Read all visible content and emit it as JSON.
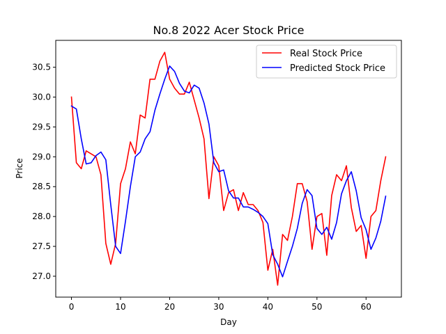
{
  "chart_data": {
    "type": "line",
    "title": "No.8 2022 Acer Stock Price",
    "xlabel": "Day",
    "ylabel": "Price",
    "xlim": [
      -3.2,
      67.2
    ],
    "ylim": [
      26.65,
      30.95
    ],
    "xticks": [
      0,
      10,
      20,
      30,
      40,
      50,
      60
    ],
    "yticks": [
      27.0,
      27.5,
      28.0,
      28.5,
      29.0,
      29.5,
      30.0,
      30.5
    ],
    "xtick_labels": [
      "0",
      "10",
      "20",
      "30",
      "40",
      "50",
      "60"
    ],
    "ytick_labels": [
      "27.0",
      "27.5",
      "28.0",
      "28.5",
      "29.0",
      "29.5",
      "30.0",
      "30.5"
    ],
    "grid": false,
    "legend_position": "top-right",
    "series": [
      {
        "name": "Real Stock Price",
        "color": "#ff0000",
        "x": [
          0,
          1,
          2,
          3,
          4,
          5,
          6,
          7,
          8,
          9,
          10,
          11,
          12,
          13,
          14,
          15,
          16,
          17,
          18,
          19,
          20,
          21,
          22,
          23,
          24,
          25,
          26,
          27,
          28,
          29,
          30,
          31,
          32,
          33,
          34,
          35,
          36,
          37,
          38,
          39,
          40,
          41,
          42,
          43,
          44,
          45,
          46,
          47,
          48,
          49,
          50,
          51,
          52,
          53,
          54,
          55,
          56,
          57,
          58,
          59,
          60,
          61,
          62,
          63,
          64
        ],
        "values": [
          30.0,
          28.9,
          28.8,
          29.1,
          29.05,
          29.0,
          28.7,
          27.55,
          27.2,
          27.55,
          28.55,
          28.8,
          29.25,
          29.05,
          29.7,
          29.65,
          30.3,
          30.3,
          30.6,
          30.75,
          30.3,
          30.15,
          30.05,
          30.05,
          30.25,
          29.95,
          29.65,
          29.3,
          28.3,
          29.0,
          28.85,
          28.1,
          28.4,
          28.45,
          28.1,
          28.4,
          28.2,
          28.2,
          28.1,
          27.9,
          27.1,
          27.45,
          26.85,
          27.7,
          27.6,
          28.0,
          28.55,
          28.55,
          28.25,
          27.45,
          28.0,
          28.05,
          27.35,
          28.35,
          28.7,
          28.6,
          28.85,
          28.15,
          27.75,
          27.85,
          27.3,
          28.0,
          28.1,
          28.6,
          29.0
        ]
      },
      {
        "name": "Predicted Stock Price",
        "color": "#0000ff",
        "x": [
          0,
          1,
          2,
          3,
          4,
          5,
          6,
          7,
          8,
          9,
          10,
          11,
          12,
          13,
          14,
          15,
          16,
          17,
          18,
          19,
          20,
          21,
          22,
          23,
          24,
          25,
          26,
          27,
          28,
          29,
          30,
          31,
          32,
          33,
          34,
          35,
          36,
          37,
          38,
          39,
          40,
          41,
          42,
          43,
          44,
          45,
          46,
          47,
          48,
          49,
          50,
          51,
          52,
          53,
          54,
          55,
          56,
          57,
          58,
          59,
          60,
          61,
          62,
          63,
          64
        ],
        "values": [
          29.85,
          29.8,
          29.3,
          28.88,
          28.9,
          29.02,
          29.08,
          28.95,
          28.2,
          27.5,
          27.38,
          27.92,
          28.5,
          29.0,
          29.08,
          29.3,
          29.42,
          29.78,
          30.05,
          30.3,
          30.52,
          30.43,
          30.23,
          30.1,
          30.07,
          30.2,
          30.15,
          29.9,
          29.55,
          28.9,
          28.75,
          28.78,
          28.43,
          28.31,
          28.31,
          28.16,
          28.16,
          28.12,
          28.07,
          28.0,
          27.88,
          27.36,
          27.2,
          26.99,
          27.25,
          27.5,
          27.8,
          28.22,
          28.45,
          28.35,
          27.8,
          27.7,
          27.82,
          27.62,
          27.9,
          28.38,
          28.6,
          28.75,
          28.43,
          27.98,
          27.78,
          27.45,
          27.64,
          27.92,
          28.34
        ]
      }
    ]
  }
}
